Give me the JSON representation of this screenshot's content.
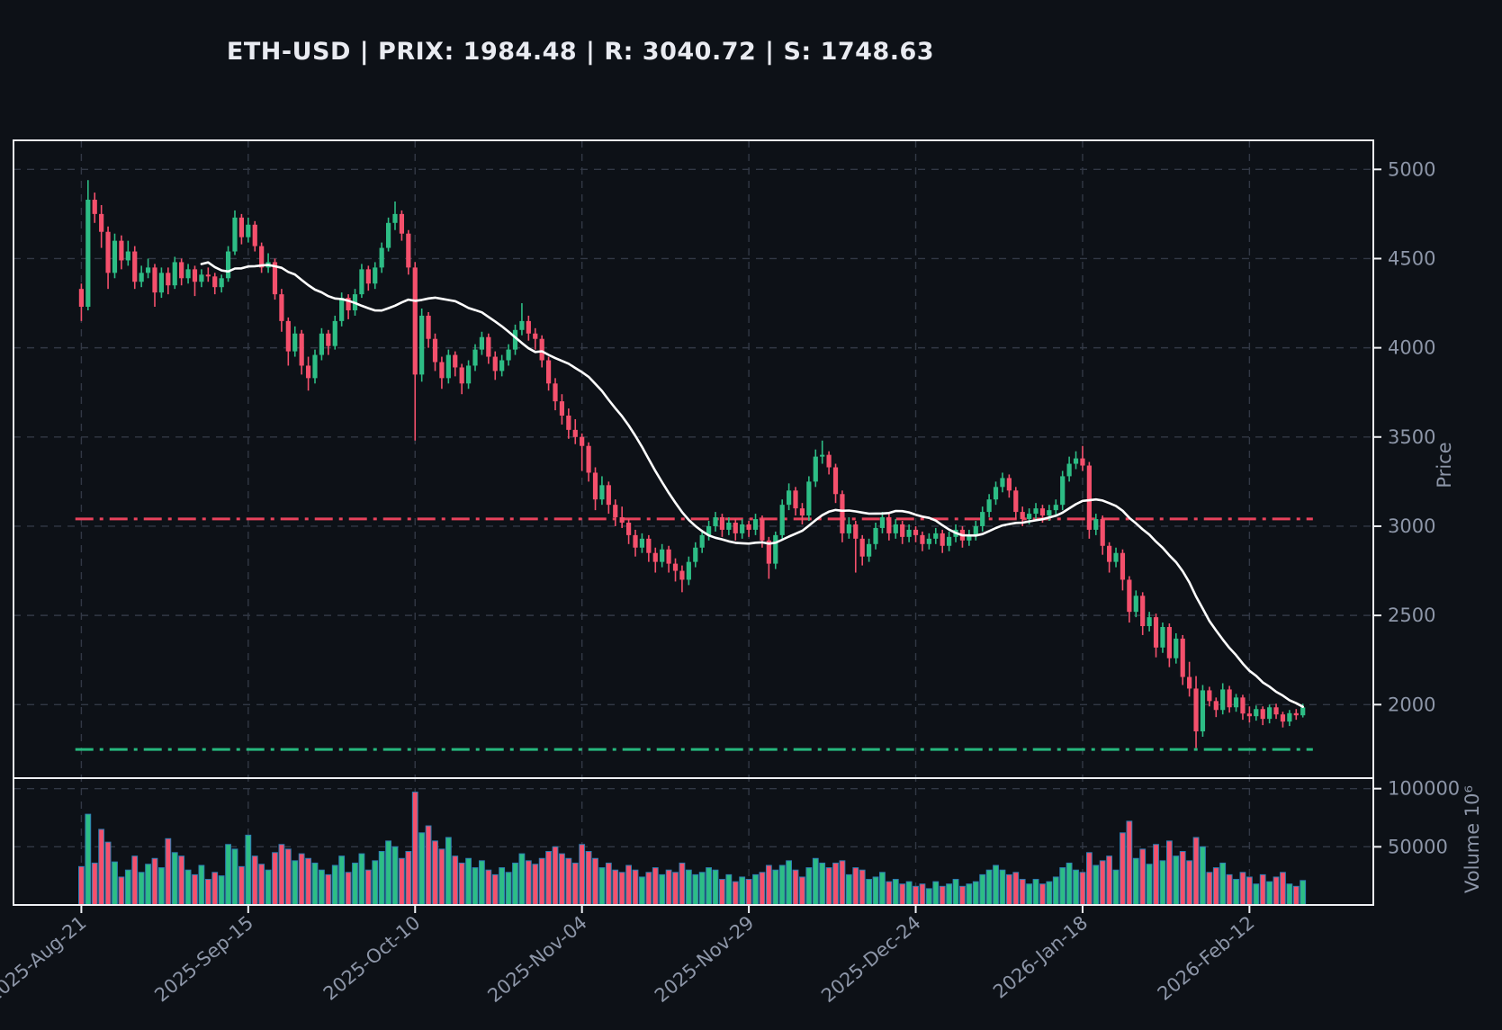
{
  "title": "ETH-USD | PRIX: 1984.48 | R: 3040.72 | S: 1748.63",
  "colors": {
    "background": "#0d1117",
    "up": "#2dbd85",
    "down": "#f4506c",
    "resistance": "#e8425c",
    "support": "#27b87e",
    "ma_line": "#ffffff",
    "grid": "#323845",
    "spine": "#eef0f4",
    "tick_label": "#8d96a8",
    "title_text": "#e9ebf1",
    "volume_bar_edge": "#2d7fb5"
  },
  "chart_data": {
    "type": "candlestick",
    "symbol": "ETH-USD",
    "last_price": 1984.48,
    "resistance": 3040.72,
    "support": 1748.63,
    "ma_window": 19,
    "start_date": "2025-08-21",
    "grid": "dashed",
    "x_ticks": [
      {
        "day": 0,
        "label": "2025-Aug-21"
      },
      {
        "day": 25,
        "label": "2025-Sep-15"
      },
      {
        "day": 50,
        "label": "2025-Oct-10"
      },
      {
        "day": 75,
        "label": "2025-Nov-04"
      },
      {
        "day": 100,
        "label": "2025-Nov-29"
      },
      {
        "day": 125,
        "label": "2025-Dec-24"
      },
      {
        "day": 150,
        "label": "2026-Jan-18"
      },
      {
        "day": 175,
        "label": "2026-Feb-12"
      }
    ],
    "price_axis": {
      "label": "Price",
      "ticks": [
        2000,
        2500,
        3000,
        3500,
        4000,
        4500,
        5000
      ],
      "ylim": [
        1588,
        5163
      ]
    },
    "volume_axis": {
      "label": "Volume  10⁶",
      "ticks": [
        50000,
        100000
      ],
      "ylim": [
        0,
        109000
      ]
    },
    "candles": [
      [
        4330,
        4360,
        4150,
        4230,
        33000
      ],
      [
        4230,
        4940,
        4210,
        4830,
        78000
      ],
      [
        4830,
        4870,
        4700,
        4750,
        36000
      ],
      [
        4750,
        4800,
        4560,
        4650,
        65000
      ],
      [
        4650,
        4680,
        4330,
        4420,
        54000
      ],
      [
        4420,
        4640,
        4390,
        4600,
        37000
      ],
      [
        4600,
        4630,
        4440,
        4490,
        24000
      ],
      [
        4490,
        4600,
        4460,
        4540,
        30000
      ],
      [
        4540,
        4570,
        4330,
        4370,
        42000
      ],
      [
        4370,
        4460,
        4340,
        4420,
        28000
      ],
      [
        4420,
        4500,
        4390,
        4450,
        35000
      ],
      [
        4450,
        4470,
        4230,
        4310,
        40000
      ],
      [
        4310,
        4450,
        4280,
        4420,
        32000
      ],
      [
        4420,
        4450,
        4300,
        4350,
        57000
      ],
      [
        4350,
        4510,
        4330,
        4480,
        45000
      ],
      [
        4480,
        4500,
        4350,
        4390,
        42000
      ],
      [
        4390,
        4470,
        4360,
        4440,
        30000
      ],
      [
        4440,
        4460,
        4290,
        4370,
        26000
      ],
      [
        4370,
        4440,
        4340,
        4410,
        34000
      ],
      [
        4410,
        4450,
        4370,
        4400,
        22000
      ],
      [
        4400,
        4420,
        4300,
        4340,
        28000
      ],
      [
        4340,
        4410,
        4310,
        4390,
        25000
      ],
      [
        4390,
        4570,
        4370,
        4540,
        52000
      ],
      [
        4540,
        4770,
        4520,
        4730,
        48000
      ],
      [
        4730,
        4750,
        4580,
        4620,
        33000
      ],
      [
        4620,
        4730,
        4590,
        4690,
        60000
      ],
      [
        4690,
        4710,
        4540,
        4570,
        42000
      ],
      [
        4570,
        4590,
        4420,
        4450,
        35000
      ],
      [
        4450,
        4530,
        4420,
        4480,
        30000
      ],
      [
        4480,
        4500,
        4270,
        4300,
        45000
      ],
      [
        4300,
        4330,
        4090,
        4150,
        52000
      ],
      [
        4150,
        4170,
        3900,
        3980,
        48000
      ],
      [
        3980,
        4120,
        3950,
        4080,
        38000
      ],
      [
        4080,
        4100,
        3850,
        3900,
        44000
      ],
      [
        3900,
        3950,
        3760,
        3830,
        40000
      ],
      [
        3830,
        3990,
        3800,
        3960,
        36000
      ],
      [
        3960,
        4110,
        3930,
        4080,
        30000
      ],
      [
        4080,
        4100,
        3960,
        4010,
        26000
      ],
      [
        4010,
        4180,
        3990,
        4150,
        34000
      ],
      [
        4150,
        4310,
        4120,
        4280,
        42000
      ],
      [
        4280,
        4300,
        4160,
        4210,
        28000
      ],
      [
        4210,
        4330,
        4180,
        4300,
        36000
      ],
      [
        4300,
        4470,
        4280,
        4440,
        44000
      ],
      [
        4440,
        4460,
        4320,
        4360,
        30000
      ],
      [
        4360,
        4480,
        4330,
        4450,
        38000
      ],
      [
        4450,
        4590,
        4420,
        4560,
        46000
      ],
      [
        4560,
        4730,
        4540,
        4700,
        55000
      ],
      [
        4700,
        4820,
        4660,
        4750,
        50000
      ],
      [
        4750,
        4770,
        4600,
        4640,
        40000
      ],
      [
        4640,
        4660,
        4410,
        4450,
        46000
      ],
      [
        4450,
        4480,
        3480,
        3850,
        97000
      ],
      [
        3850,
        4220,
        3810,
        4180,
        62000
      ],
      [
        4180,
        4200,
        4000,
        4050,
        68000
      ],
      [
        4050,
        4080,
        3870,
        3920,
        55000
      ],
      [
        3920,
        3950,
        3770,
        3830,
        48000
      ],
      [
        3830,
        3990,
        3800,
        3960,
        58000
      ],
      [
        3960,
        3980,
        3840,
        3890,
        42000
      ],
      [
        3890,
        3910,
        3740,
        3800,
        36000
      ],
      [
        3800,
        3930,
        3770,
        3900,
        40000
      ],
      [
        3900,
        4020,
        3870,
        3990,
        32000
      ],
      [
        3990,
        4090,
        3960,
        4060,
        38000
      ],
      [
        4060,
        4080,
        3910,
        3950,
        30000
      ],
      [
        3950,
        3980,
        3820,
        3870,
        26000
      ],
      [
        3870,
        3960,
        3840,
        3930,
        32000
      ],
      [
        3930,
        4020,
        3900,
        3990,
        28000
      ],
      [
        3990,
        4130,
        3960,
        4100,
        36000
      ],
      [
        4100,
        4250,
        4070,
        4150,
        44000
      ],
      [
        4150,
        4180,
        4040,
        4080,
        38000
      ],
      [
        4080,
        4110,
        3990,
        4050,
        35000
      ],
      [
        4050,
        4070,
        3890,
        3930,
        40000
      ],
      [
        3930,
        3950,
        3760,
        3800,
        46000
      ],
      [
        3800,
        3830,
        3650,
        3700,
        50000
      ],
      [
        3700,
        3740,
        3570,
        3620,
        44000
      ],
      [
        3620,
        3660,
        3490,
        3540,
        40000
      ],
      [
        3540,
        3600,
        3460,
        3500,
        36000
      ],
      [
        3500,
        3520,
        3310,
        3450,
        52000
      ],
      [
        3450,
        3470,
        3250,
        3300,
        46000
      ],
      [
        3300,
        3330,
        3090,
        3150,
        40000
      ],
      [
        3150,
        3280,
        3120,
        3230,
        32000
      ],
      [
        3230,
        3250,
        3070,
        3120,
        36000
      ],
      [
        3120,
        3150,
        3000,
        3050,
        30000
      ],
      [
        3050,
        3110,
        2990,
        3020,
        28000
      ],
      [
        3020,
        3040,
        2900,
        2950,
        34000
      ],
      [
        2950,
        2980,
        2830,
        2880,
        30000
      ],
      [
        2880,
        2960,
        2850,
        2930,
        24000
      ],
      [
        2930,
        2950,
        2800,
        2850,
        28000
      ],
      [
        2850,
        2880,
        2740,
        2800,
        32000
      ],
      [
        2800,
        2900,
        2770,
        2870,
        26000
      ],
      [
        2870,
        2890,
        2740,
        2790,
        30000
      ],
      [
        2790,
        2820,
        2690,
        2750,
        28000
      ],
      [
        2750,
        2780,
        2630,
        2700,
        36000
      ],
      [
        2700,
        2830,
        2670,
        2800,
        30000
      ],
      [
        2800,
        2910,
        2770,
        2880,
        26000
      ],
      [
        2880,
        2980,
        2850,
        2950,
        28000
      ],
      [
        2950,
        3030,
        2920,
        3000,
        32000
      ],
      [
        3000,
        3080,
        2970,
        3050,
        30000
      ],
      [
        3050,
        3070,
        2940,
        2980,
        22000
      ],
      [
        2980,
        3050,
        2950,
        3020,
        26000
      ],
      [
        3020,
        3040,
        2920,
        2960,
        20000
      ],
      [
        2960,
        3040,
        2930,
        3010,
        24000
      ],
      [
        3010,
        3030,
        2940,
        2980,
        22000
      ],
      [
        2980,
        3070,
        2950,
        3040,
        26000
      ],
      [
        3040,
        3060,
        2880,
        2920,
        28000
      ],
      [
        2920,
        2940,
        2705,
        2790,
        34000
      ],
      [
        2790,
        2970,
        2760,
        2950,
        30000
      ],
      [
        2950,
        3150,
        2920,
        3120,
        34000
      ],
      [
        3120,
        3240,
        3090,
        3200,
        38000
      ],
      [
        3200,
        3220,
        3060,
        3100,
        30000
      ],
      [
        3100,
        3130,
        3010,
        3060,
        24000
      ],
      [
        3060,
        3280,
        3030,
        3250,
        32000
      ],
      [
        3250,
        3430,
        3220,
        3390,
        40000
      ],
      [
        3390,
        3480,
        3350,
        3400,
        36000
      ],
      [
        3400,
        3420,
        3290,
        3330,
        32000
      ],
      [
        3330,
        3350,
        3130,
        3180,
        36000
      ],
      [
        3180,
        3200,
        2910,
        2960,
        38000
      ],
      [
        2960,
        3050,
        2930,
        3010,
        26000
      ],
      [
        3010,
        3030,
        2740,
        2930,
        32000
      ],
      [
        2930,
        2950,
        2780,
        2830,
        30000
      ],
      [
        2830,
        2930,
        2800,
        2900,
        22000
      ],
      [
        2900,
        3020,
        2870,
        2990,
        24000
      ],
      [
        2990,
        3080,
        2960,
        3050,
        28000
      ],
      [
        3050,
        3070,
        2920,
        2960,
        20000
      ],
      [
        2960,
        3040,
        2930,
        3010,
        22000
      ],
      [
        3010,
        3030,
        2900,
        2940,
        18000
      ],
      [
        2940,
        3010,
        2910,
        2980,
        20000
      ],
      [
        2980,
        3000,
        2910,
        2950,
        16000
      ],
      [
        2950,
        2970,
        2860,
        2900,
        18000
      ],
      [
        2900,
        2960,
        2870,
        2930,
        14000
      ],
      [
        2930,
        2990,
        2900,
        2960,
        20000
      ],
      [
        2960,
        2980,
        2850,
        2890,
        16000
      ],
      [
        2890,
        2970,
        2860,
        2940,
        18000
      ],
      [
        2940,
        3010,
        2910,
        2980,
        22000
      ],
      [
        2980,
        3000,
        2880,
        2920,
        16000
      ],
      [
        2920,
        2980,
        2890,
        2950,
        18000
      ],
      [
        2950,
        3030,
        2920,
        3000,
        20000
      ],
      [
        3000,
        3110,
        2970,
        3080,
        26000
      ],
      [
        3080,
        3180,
        3050,
        3150,
        30000
      ],
      [
        3150,
        3250,
        3120,
        3220,
        34000
      ],
      [
        3220,
        3300,
        3190,
        3270,
        30000
      ],
      [
        3270,
        3290,
        3160,
        3200,
        26000
      ],
      [
        3200,
        3220,
        3040,
        3080,
        28000
      ],
      [
        3080,
        3110,
        3000,
        3040,
        22000
      ],
      [
        3040,
        3100,
        3010,
        3070,
        18000
      ],
      [
        3070,
        3130,
        3040,
        3100,
        22000
      ],
      [
        3100,
        3120,
        3020,
        3060,
        18000
      ],
      [
        3060,
        3120,
        3030,
        3090,
        20000
      ],
      [
        3090,
        3150,
        3060,
        3120,
        24000
      ],
      [
        3120,
        3310,
        3090,
        3280,
        32000
      ],
      [
        3280,
        3390,
        3250,
        3350,
        36000
      ],
      [
        3350,
        3420,
        3320,
        3380,
        30000
      ],
      [
        3380,
        3450,
        3310,
        3340,
        28000
      ],
      [
        3340,
        3360,
        2930,
        2980,
        45000
      ],
      [
        2980,
        3070,
        2950,
        3040,
        34000
      ],
      [
        3040,
        3060,
        2840,
        2890,
        38000
      ],
      [
        2890,
        2910,
        2740,
        2800,
        42000
      ],
      [
        2800,
        2880,
        2770,
        2850,
        30000
      ],
      [
        2850,
        2870,
        2640,
        2700,
        62000
      ],
      [
        2700,
        2720,
        2460,
        2520,
        72000
      ],
      [
        2520,
        2640,
        2490,
        2610,
        40000
      ],
      [
        2610,
        2630,
        2390,
        2440,
        48000
      ],
      [
        2440,
        2520,
        2410,
        2490,
        35000
      ],
      [
        2490,
        2510,
        2265,
        2320,
        52000
      ],
      [
        2320,
        2460,
        2290,
        2435,
        38000
      ],
      [
        2435,
        2455,
        2210,
        2260,
        55000
      ],
      [
        2260,
        2400,
        2230,
        2370,
        42000
      ],
      [
        2370,
        2390,
        2110,
        2155,
        46000
      ],
      [
        2155,
        2240,
        2045,
        2090,
        38000
      ],
      [
        2090,
        2160,
        1757,
        1850,
        58000
      ],
      [
        1850,
        2110,
        1820,
        2080,
        50000
      ],
      [
        2080,
        2100,
        1990,
        2020,
        28000
      ],
      [
        2020,
        2040,
        1930,
        1970,
        32000
      ],
      [
        1970,
        2120,
        1945,
        2085,
        36000
      ],
      [
        2085,
        2105,
        1955,
        1985,
        26000
      ],
      [
        1985,
        2060,
        1960,
        2040,
        22000
      ],
      [
        2040,
        2055,
        1915,
        1950,
        28000
      ],
      [
        1950,
        1990,
        1900,
        1935,
        24000
      ],
      [
        1935,
        1995,
        1910,
        1975,
        18000
      ],
      [
        1975,
        1990,
        1885,
        1920,
        26000
      ],
      [
        1920,
        2000,
        1895,
        1985,
        20000
      ],
      [
        1985,
        2005,
        1920,
        1945,
        24000
      ],
      [
        1945,
        1960,
        1872,
        1905,
        28000
      ],
      [
        1905,
        1970,
        1880,
        1952,
        18000
      ],
      [
        1952,
        1975,
        1915,
        1940,
        16000
      ],
      [
        1940,
        2005,
        1928,
        1984.48,
        21000
      ]
    ]
  }
}
